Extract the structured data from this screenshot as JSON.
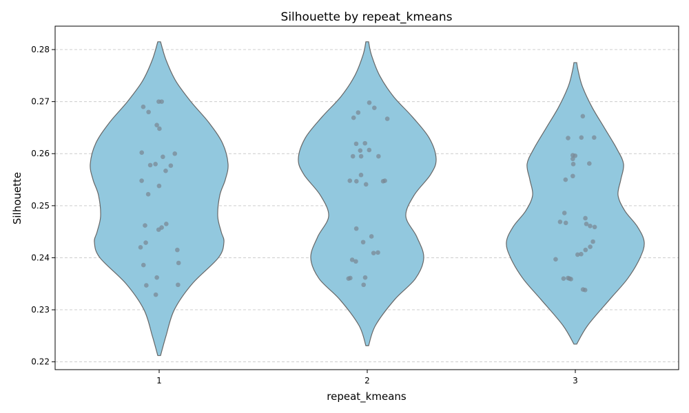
{
  "chart_data": {
    "type": "violin",
    "title": "Silhouette by repeat_kmeans",
    "xlabel": "repeat_kmeans",
    "ylabel": "Silhouette",
    "ylim": [
      0.2185,
      0.2845
    ],
    "yticks": [
      0.22,
      0.23,
      0.24,
      0.25,
      0.26,
      0.27,
      0.28
    ],
    "ytick_labels": [
      "0.22",
      "0.23",
      "0.24",
      "0.25",
      "0.26",
      "0.27",
      "0.28"
    ],
    "grid": true,
    "violin_color": "#92c8de",
    "violin_edge_color": "#666666",
    "point_color": "#7a8a96",
    "categories": [
      "1",
      "2",
      "3"
    ],
    "groups": [
      {
        "category": "1",
        "range": [
          0.2212,
          0.2815
        ],
        "density_profile": [
          [
            0.2212,
            0.02
          ],
          [
            0.225,
            0.1
          ],
          [
            0.23,
            0.22
          ],
          [
            0.235,
            0.48
          ],
          [
            0.24,
            0.86
          ],
          [
            0.243,
            0.94
          ],
          [
            0.245,
            0.9
          ],
          [
            0.248,
            0.85
          ],
          [
            0.252,
            0.88
          ],
          [
            0.255,
            0.96
          ],
          [
            0.258,
            1.0
          ],
          [
            0.262,
            0.92
          ],
          [
            0.266,
            0.72
          ],
          [
            0.27,
            0.46
          ],
          [
            0.274,
            0.24
          ],
          [
            0.278,
            0.1
          ],
          [
            0.2815,
            0.02
          ]
        ],
        "points": [
          0.27,
          0.27,
          0.269,
          0.268,
          0.2655,
          0.2648,
          0.2602,
          0.26,
          0.2594,
          0.258,
          0.2578,
          0.2577,
          0.2567,
          0.2548,
          0.2538,
          0.2522,
          0.2465,
          0.2462,
          0.2458,
          0.2454,
          0.2429,
          0.242,
          0.2415,
          0.239,
          0.2386,
          0.2362,
          0.2348,
          0.2347,
          0.2329
        ]
      },
      {
        "category": "2",
        "range": [
          0.2231,
          0.2815
        ],
        "density_profile": [
          [
            0.2231,
            0.02
          ],
          [
            0.227,
            0.12
          ],
          [
            0.232,
            0.4
          ],
          [
            0.236,
            0.7
          ],
          [
            0.24,
            0.82
          ],
          [
            0.244,
            0.72
          ],
          [
            0.248,
            0.56
          ],
          [
            0.252,
            0.68
          ],
          [
            0.256,
            0.92
          ],
          [
            0.259,
            1.0
          ],
          [
            0.263,
            0.9
          ],
          [
            0.267,
            0.66
          ],
          [
            0.271,
            0.38
          ],
          [
            0.275,
            0.18
          ],
          [
            0.279,
            0.06
          ],
          [
            0.2815,
            0.02
          ]
        ],
        "points": [
          0.2698,
          0.2688,
          0.2679,
          0.2669,
          0.2667,
          0.262,
          0.2619,
          0.2607,
          0.2606,
          0.2595,
          0.2595,
          0.2595,
          0.2559,
          0.2548,
          0.2548,
          0.2547,
          0.2547,
          0.2541,
          0.2456,
          0.2441,
          0.243,
          0.241,
          0.2409,
          0.2396,
          0.2393,
          0.2362,
          0.2361,
          0.236,
          0.2348
        ]
      },
      {
        "category": "3",
        "range": [
          0.2234,
          0.2775
        ],
        "density_profile": [
          [
            0.2234,
            0.02
          ],
          [
            0.227,
            0.18
          ],
          [
            0.232,
            0.5
          ],
          [
            0.236,
            0.76
          ],
          [
            0.24,
            0.94
          ],
          [
            0.243,
            1.0
          ],
          [
            0.246,
            0.9
          ],
          [
            0.249,
            0.72
          ],
          [
            0.252,
            0.62
          ],
          [
            0.255,
            0.66
          ],
          [
            0.258,
            0.7
          ],
          [
            0.261,
            0.6
          ],
          [
            0.265,
            0.42
          ],
          [
            0.269,
            0.24
          ],
          [
            0.273,
            0.1
          ],
          [
            0.276,
            0.04
          ],
          [
            0.2775,
            0.02
          ]
        ],
        "points": [
          0.2672,
          0.2631,
          0.2631,
          0.263,
          0.2597,
          0.2596,
          0.259,
          0.2581,
          0.258,
          0.2557,
          0.255,
          0.2486,
          0.2476,
          0.2469,
          0.2467,
          0.2465,
          0.2461,
          0.2459,
          0.2431,
          0.2421,
          0.2415,
          0.2407,
          0.2406,
          0.2397,
          0.2361,
          0.236,
          0.236,
          0.2359,
          0.2339,
          0.2338
        ]
      }
    ]
  }
}
